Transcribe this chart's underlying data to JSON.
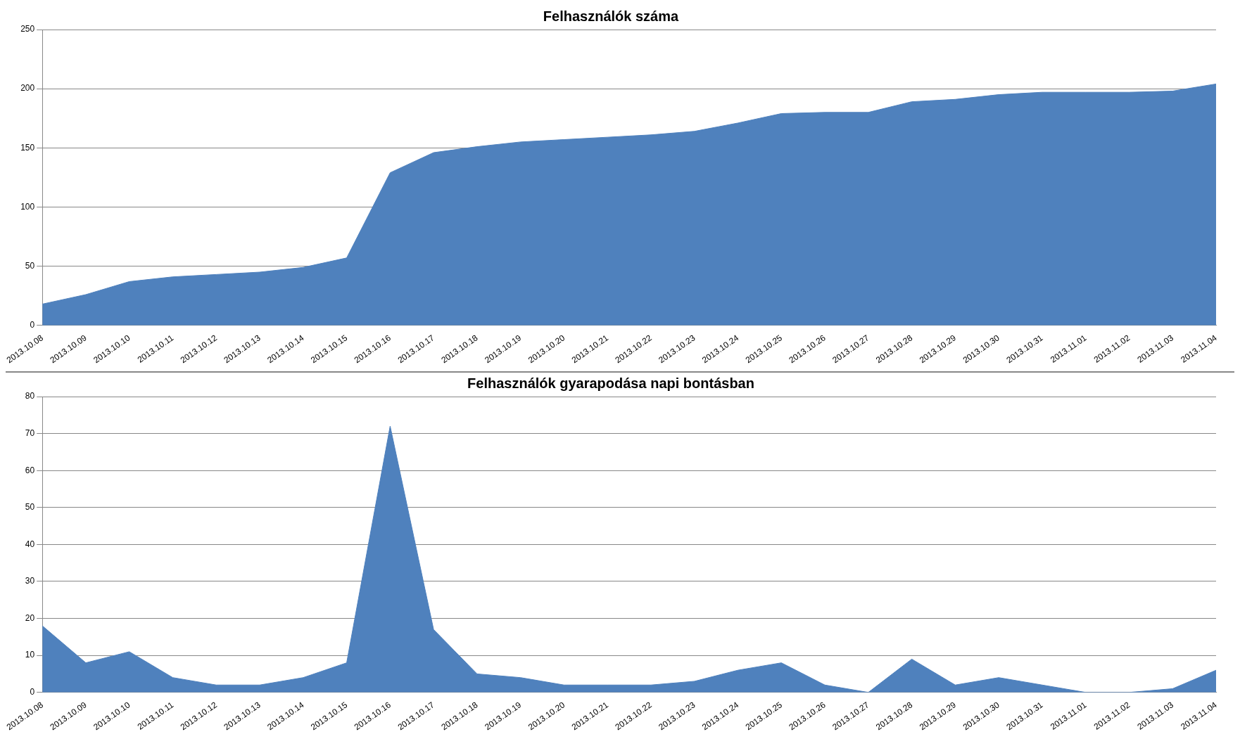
{
  "chart_data": [
    {
      "type": "area",
      "title": "Felhasználók száma",
      "categories": [
        "2013.10.08",
        "2013.10.09",
        "2013.10.10",
        "2013.10.11",
        "2013.10.12",
        "2013.10.13",
        "2013.10.14",
        "2013.10.15",
        "2013.10.16",
        "2013.10.17",
        "2013.10.18",
        "2013.10.19",
        "2013.10.20",
        "2013.10.21",
        "2013.10.22",
        "2013.10.23",
        "2013.10.24",
        "2013.10.25",
        "2013.10.26",
        "2013.10.27",
        "2013.10.28",
        "2013.10.29",
        "2013.10.30",
        "2013.10.31",
        "2013.11.01",
        "2013.11.02",
        "2013.11.03",
        "2013.11.04"
      ],
      "series": [
        {
          "color": "#4f81bd",
          "values": [
            18,
            26,
            37,
            41,
            43,
            45,
            49,
            57,
            129,
            146,
            151,
            155,
            157,
            159,
            161,
            164,
            171,
            179,
            180,
            180,
            189,
            191,
            195,
            197,
            197,
            197,
            198,
            204
          ]
        }
      ],
      "ylim": [
        0,
        250
      ],
      "yticks": [
        0,
        50,
        100,
        150,
        200,
        250
      ],
      "grid": "y",
      "legend": false,
      "marker": "none"
    },
    {
      "type": "area",
      "title": "Felhasználók gyarapodása napi bontásban",
      "categories": [
        "2013.10.08",
        "2013.10.09",
        "2013.10.10",
        "2013.10.11",
        "2013.10.12",
        "2013.10.13",
        "2013.10.14",
        "2013.10.15",
        "2013.10.16",
        "2013.10.17",
        "2013.10.18",
        "2013.10.19",
        "2013.10.20",
        "2013.10.21",
        "2013.10.22",
        "2013.10.23",
        "2013.10.24",
        "2013.10.25",
        "2013.10.26",
        "2013.10.27",
        "2013.10.28",
        "2013.10.29",
        "2013.10.30",
        "2013.10.31",
        "2013.11.01",
        "2013.11.02",
        "2013.11.03",
        "2013.11.04"
      ],
      "series": [
        {
          "color": "#4f81bd",
          "values": [
            18,
            8,
            11,
            4,
            2,
            2,
            4,
            8,
            72,
            17,
            5,
            4,
            2,
            2,
            2,
            3,
            6,
            8,
            2,
            0,
            9,
            2,
            4,
            2,
            0,
            0,
            1,
            6
          ]
        }
      ],
      "ylim": [
        0,
        80
      ],
      "yticks": [
        0,
        10,
        20,
        30,
        40,
        50,
        60,
        70,
        80
      ],
      "grid": "y",
      "legend": false,
      "marker": "none"
    }
  ]
}
